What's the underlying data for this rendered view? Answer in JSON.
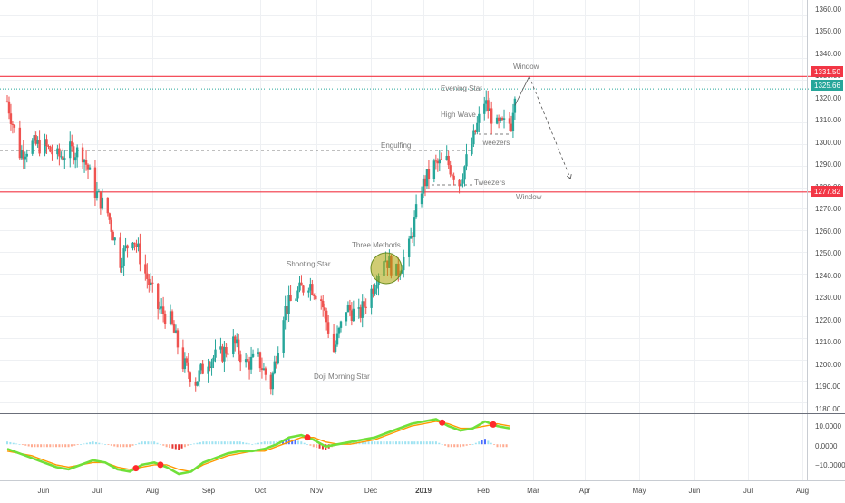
{
  "colors": {
    "up": "#26a69a",
    "down": "#ef5350",
    "grid": "#eef0f3",
    "axis_text": "#4a4a4a",
    "annotation_text": "#7a7a7a",
    "resistance_line": "#f23645",
    "last_price_line": "#26a69a",
    "macd_line": "#70e03a",
    "signal_line": "#ff9800",
    "hist_pos_strong": "#4a6cff",
    "hist_pos_weak": "#9fe3f2",
    "hist_neg_strong": "#e53935",
    "hist_neg_weak": "#ffab91",
    "cross_marker": "#ff2a2a",
    "three_methods_circle_fill": "#a9a200",
    "three_methods_circle_stroke": "#6b8e23"
  },
  "price_axis": {
    "labels": [
      "1360.00",
      "1350.00",
      "1340.00",
      "1330.00",
      "1320.00",
      "1310.00",
      "1300.00",
      "1290.00",
      "1280.00",
      "1270.00",
      "1260.00",
      "1250.00",
      "1240.00",
      "1230.00",
      "1220.00",
      "1210.00",
      "1200.00",
      "1190.00",
      "1180.00"
    ]
  },
  "price_tags": [
    {
      "text": "1331.50",
      "color": "#f23645"
    },
    {
      "text": "1325.66",
      "color": "#26a69a"
    },
    {
      "text": "1277.82",
      "color": "#f23645"
    }
  ],
  "macd_axis": {
    "labels": [
      "10.0000",
      "0.0000",
      "−10.0000"
    ]
  },
  "time_axis": {
    "labels": [
      "Jun",
      "Jul",
      "Aug",
      "Sep",
      "Oct",
      "Nov",
      "Dec",
      "2019",
      "Feb",
      "Mar",
      "Apr",
      "May",
      "Jun",
      "Jul",
      "Aug"
    ]
  },
  "annotations": [
    {
      "text": "Window"
    },
    {
      "text": "Evening Star"
    },
    {
      "text": "High Wave"
    },
    {
      "text": "Tweezers"
    },
    {
      "text": "Engulfing"
    },
    {
      "text": "Tweezers"
    },
    {
      "text": "Window"
    },
    {
      "text": "Three Methods"
    },
    {
      "text": "Shooting Star"
    },
    {
      "text": "Doji Morning Star"
    }
  ],
  "chart_data": {
    "type": "candlestick",
    "title": "",
    "ylim": [
      1175,
      1367
    ],
    "yticks": [
      1360,
      1350,
      1340,
      1330,
      1320,
      1310,
      1300,
      1290,
      1280,
      1270,
      1260,
      1250,
      1240,
      1230,
      1220,
      1210,
      1200,
      1190,
      1180
    ],
    "horizontal_levels": [
      {
        "value": 1331.5,
        "style": "solid",
        "color": "#f23645"
      },
      {
        "value": 1325.66,
        "style": "dotted",
        "color": "#26a69a"
      },
      {
        "value": 1277.82,
        "style": "solid",
        "color": "#f23645"
      }
    ],
    "grid": true,
    "price_anchors": [
      {
        "date": "May 14, 2018",
        "close": 1320
      },
      {
        "date": "May 21, 2018",
        "close": 1296
      },
      {
        "date": "May 28, 2018",
        "close": 1300
      },
      {
        "date": "Jun 4, 2018",
        "close": 1299
      },
      {
        "date": "Jun 11, 2018",
        "close": 1294
      },
      {
        "date": "Jun 18, 2018",
        "close": 1297
      },
      {
        "date": "Jun 25, 2018",
        "close": 1296
      },
      {
        "date": "Jul 2, 2018",
        "close": 1278
      },
      {
        "date": "Jul 9, 2018",
        "close": 1268
      },
      {
        "date": "Jul 16, 2018",
        "close": 1246
      },
      {
        "date": "Jul 23, 2018",
        "close": 1258
      },
      {
        "date": "Jul 30, 2018",
        "close": 1240
      },
      {
        "date": "Aug 6, 2018",
        "close": 1224
      },
      {
        "date": "Aug 13, 2018",
        "close": 1218
      },
      {
        "date": "Aug 20, 2018",
        "close": 1198
      },
      {
        "date": "Aug 27, 2018",
        "close": 1190
      },
      {
        "date": "Sep 3, 2018",
        "close": 1200
      },
      {
        "date": "Sep 10, 2018",
        "close": 1202
      },
      {
        "date": "Sep 17, 2018",
        "close": 1208
      },
      {
        "date": "Sep 24, 2018",
        "close": 1198
      },
      {
        "date": "Oct 1, 2018",
        "close": 1200
      },
      {
        "date": "Oct 8, 2018",
        "close": 1188
      },
      {
        "date": "Oct 15, 2018",
        "close": 1222
      },
      {
        "date": "Oct 22, 2018",
        "close": 1230
      },
      {
        "date": "Oct 29, 2018",
        "close": 1236
      },
      {
        "date": "Nov 5, 2018",
        "close": 1228
      },
      {
        "date": "Nov 12, 2018",
        "close": 1204
      },
      {
        "date": "Nov 19, 2018",
        "close": 1224
      },
      {
        "date": "Nov 26, 2018",
        "close": 1220
      },
      {
        "date": "Dec 3, 2018",
        "close": 1232
      },
      {
        "date": "Dec 10, 2018",
        "close": 1248
      },
      {
        "date": "Dec 17, 2018",
        "close": 1240
      },
      {
        "date": "Dec 24, 2018",
        "close": 1252
      },
      {
        "date": "Dec 31, 2018",
        "close": 1280
      },
      {
        "date": "Jan 7, 2019",
        "close": 1290
      },
      {
        "date": "Jan 14, 2019",
        "close": 1292
      },
      {
        "date": "Jan 21, 2019",
        "close": 1282
      },
      {
        "date": "Jan 28, 2019",
        "close": 1300
      },
      {
        "date": "Feb 4, 2019",
        "close": 1320
      },
      {
        "date": "Feb 11, 2019",
        "close": 1308
      },
      {
        "date": "Feb 19, 2019",
        "close": 1310
      },
      {
        "date": "Feb 21, 2019",
        "close": 1325.66
      }
    ],
    "projection": [
      {
        "date": "Feb 21, 2019",
        "price": 1318
      },
      {
        "date": "Mar 1, 2019",
        "price": 1331.5
      },
      {
        "date": "Mar 24, 2019",
        "price": 1284
      }
    ],
    "macd_series": {
      "macd_range": [
        -15,
        12
      ],
      "macd_line": [
        -2,
        -4,
        -6,
        -8,
        -10,
        -11,
        -9,
        -7,
        -8,
        -11,
        -12,
        -9,
        -8,
        -10,
        -13,
        -12,
        -8,
        -6,
        -4,
        -3,
        -3,
        -2,
        0,
        3,
        4,
        2,
        -1,
        0,
        1,
        2,
        3,
        5,
        7,
        9,
        10,
        11,
        8,
        6,
        7,
        10,
        8,
        7
      ],
      "signal_line": [
        -3,
        -4,
        -5,
        -7,
        -9,
        -10,
        -9,
        -8,
        -8,
        -10,
        -11,
        -10,
        -9,
        -9,
        -11,
        -12,
        -9,
        -7,
        -5,
        -4,
        -3,
        -3,
        -1,
        1,
        3,
        3,
        1,
        0,
        0,
        1,
        2,
        4,
        6,
        8,
        9,
        10,
        9,
        7,
        7,
        8,
        9,
        8
      ]
    }
  }
}
